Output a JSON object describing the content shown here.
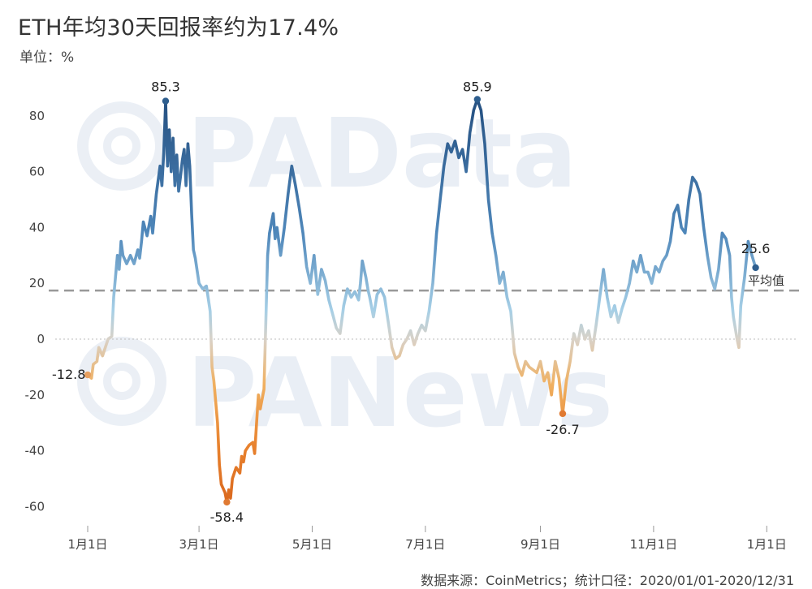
{
  "title": "ETH年均30天回报率约为17.4%",
  "unit": "单位：%",
  "source": "数据来源：CoinMetrics；统计口径：2020/01/01-2020/12/31",
  "watermarks": [
    "PAData",
    "PANews"
  ],
  "chart_data": {
    "type": "line",
    "xlabel": "",
    "ylabel": "",
    "ylim": [
      -65,
      90
    ],
    "yticks": [
      80,
      60,
      40,
      20,
      0,
      -20,
      -40,
      -60
    ],
    "xlim": [
      0,
      365
    ],
    "xticks": [
      {
        "day": 0,
        "label": "1月1日"
      },
      {
        "day": 60,
        "label": "3月1日"
      },
      {
        "day": 121,
        "label": "5月1日"
      },
      {
        "day": 182,
        "label": "7月1日"
      },
      {
        "day": 244,
        "label": "9月1日"
      },
      {
        "day": 305,
        "label": "11月1日"
      },
      {
        "day": 366,
        "label": "1月1日"
      }
    ],
    "average": {
      "value": 17.4,
      "label": "平均值"
    },
    "colors": {
      "high": "#2e5e8e",
      "mid": "#9ec9e2",
      "low": "#e8823c",
      "zero": "#d9d4cc"
    },
    "annotations": [
      {
        "day": 0,
        "value": -12.8,
        "label": "-12.8"
      },
      {
        "day": 42,
        "value": 85.3,
        "label": "85.3"
      },
      {
        "day": 75,
        "value": -58.4,
        "label": "-58.4"
      },
      {
        "day": 230,
        "value": 85.9,
        "label": "85.9"
      },
      {
        "day": 274,
        "value": -26.7,
        "label": "-26.7"
      },
      {
        "day": 365,
        "value": 25.6,
        "label": "25.6"
      }
    ],
    "series": [
      {
        "points": [
          [
            0,
            -12.8
          ],
          [
            2,
            -14
          ],
          [
            3,
            -9
          ],
          [
            5,
            -8
          ],
          [
            6,
            -3
          ],
          [
            8,
            -6
          ],
          [
            10,
            -2
          ],
          [
            11,
            0
          ],
          [
            13,
            1
          ],
          [
            14,
            15
          ],
          [
            16,
            30
          ],
          [
            17,
            25
          ],
          [
            18,
            35
          ],
          [
            19,
            30
          ],
          [
            21,
            27
          ],
          [
            23,
            30
          ],
          [
            25,
            27
          ],
          [
            27,
            32
          ],
          [
            28,
            29
          ],
          [
            29,
            35
          ],
          [
            30,
            42
          ],
          [
            32,
            37
          ],
          [
            34,
            44
          ],
          [
            35,
            38
          ],
          [
            37,
            52
          ],
          [
            39,
            62
          ],
          [
            40,
            55
          ],
          [
            41,
            67
          ],
          [
            42,
            85.3
          ],
          [
            43,
            62
          ],
          [
            44,
            75
          ],
          [
            45,
            60
          ],
          [
            46,
            72
          ],
          [
            47,
            55
          ],
          [
            48,
            66
          ],
          [
            49,
            53
          ],
          [
            50,
            58
          ],
          [
            51,
            64
          ],
          [
            52,
            68
          ],
          [
            53,
            55
          ],
          [
            54,
            70
          ],
          [
            55,
            62
          ],
          [
            56,
            45
          ],
          [
            57,
            32
          ],
          [
            58,
            29
          ],
          [
            60,
            20
          ],
          [
            62,
            18
          ],
          [
            64,
            19
          ],
          [
            66,
            10
          ],
          [
            67,
            -10
          ],
          [
            68,
            -15
          ],
          [
            70,
            -30
          ],
          [
            71,
            -45
          ],
          [
            72,
            -52
          ],
          [
            74,
            -55
          ],
          [
            75,
            -58.4
          ],
          [
            76,
            -54
          ],
          [
            77,
            -57
          ],
          [
            78,
            -50
          ],
          [
            80,
            -46
          ],
          [
            82,
            -48
          ],
          [
            83,
            -42
          ],
          [
            84,
            -44
          ],
          [
            85,
            -40
          ],
          [
            87,
            -38
          ],
          [
            89,
            -37
          ],
          [
            90,
            -41
          ],
          [
            92,
            -20
          ],
          [
            93,
            -25
          ],
          [
            95,
            -18
          ],
          [
            97,
            30
          ],
          [
            98,
            38
          ],
          [
            100,
            45
          ],
          [
            101,
            36
          ],
          [
            102,
            40
          ],
          [
            104,
            30
          ],
          [
            106,
            40
          ],
          [
            108,
            52
          ],
          [
            110,
            62
          ],
          [
            112,
            55
          ],
          [
            114,
            47
          ],
          [
            116,
            38
          ],
          [
            118,
            26
          ],
          [
            120,
            20
          ],
          [
            122,
            30
          ],
          [
            124,
            16
          ],
          [
            126,
            25
          ],
          [
            128,
            21
          ],
          [
            130,
            14
          ],
          [
            132,
            9
          ],
          [
            134,
            4
          ],
          [
            136,
            2
          ],
          [
            138,
            12
          ],
          [
            140,
            18
          ],
          [
            142,
            15
          ],
          [
            144,
            17
          ],
          [
            146,
            14
          ],
          [
            147,
            20
          ],
          [
            148,
            28
          ],
          [
            150,
            22
          ],
          [
            151,
            18
          ],
          [
            152,
            15
          ],
          [
            154,
            8
          ],
          [
            156,
            16
          ],
          [
            158,
            18
          ],
          [
            160,
            15
          ],
          [
            162,
            6
          ],
          [
            164,
            -3
          ],
          [
            166,
            -7
          ],
          [
            168,
            -6
          ],
          [
            170,
            -2
          ],
          [
            172,
            0
          ],
          [
            174,
            3
          ],
          [
            176,
            -2
          ],
          [
            178,
            2
          ],
          [
            180,
            5
          ],
          [
            182,
            3
          ],
          [
            184,
            10
          ],
          [
            186,
            20
          ],
          [
            188,
            38
          ],
          [
            190,
            50
          ],
          [
            192,
            62
          ],
          [
            194,
            70
          ],
          [
            196,
            67
          ],
          [
            198,
            71
          ],
          [
            200,
            65
          ],
          [
            202,
            68
          ],
          [
            204,
            60
          ],
          [
            206,
            74
          ],
          [
            208,
            82
          ],
          [
            210,
            85.9
          ],
          [
            212,
            82
          ],
          [
            214,
            70
          ],
          [
            216,
            50
          ],
          [
            218,
            38
          ],
          [
            220,
            30
          ],
          [
            222,
            20
          ],
          [
            224,
            24
          ],
          [
            226,
            15
          ],
          [
            228,
            10
          ],
          [
            230,
            -5
          ],
          [
            232,
            -10
          ],
          [
            234,
            -13
          ],
          [
            236,
            -8
          ],
          [
            238,
            -10
          ],
          [
            240,
            -11
          ],
          [
            242,
            -12
          ],
          [
            244,
            -8
          ],
          [
            246,
            -15
          ],
          [
            248,
            -12
          ],
          [
            250,
            -20
          ],
          [
            252,
            -8
          ],
          [
            254,
            -14
          ],
          [
            256,
            -26.7
          ],
          [
            258,
            -15
          ],
          [
            260,
            -8
          ],
          [
            262,
            2
          ],
          [
            264,
            -2
          ],
          [
            266,
            5
          ],
          [
            268,
            0
          ],
          [
            270,
            3
          ],
          [
            272,
            -4
          ],
          [
            274,
            5
          ],
          [
            276,
            15
          ],
          [
            278,
            25
          ],
          [
            280,
            15
          ],
          [
            282,
            8
          ],
          [
            284,
            12
          ],
          [
            286,
            6
          ],
          [
            288,
            11
          ],
          [
            290,
            15
          ],
          [
            292,
            20
          ],
          [
            294,
            28
          ],
          [
            296,
            24
          ],
          [
            298,
            30
          ],
          [
            300,
            24
          ],
          [
            302,
            24
          ],
          [
            304,
            20
          ],
          [
            306,
            26
          ],
          [
            308,
            24
          ],
          [
            310,
            28
          ],
          [
            312,
            30
          ],
          [
            314,
            35
          ],
          [
            316,
            45
          ],
          [
            318,
            48
          ],
          [
            320,
            40
          ],
          [
            322,
            38
          ],
          [
            324,
            50
          ],
          [
            326,
            58
          ],
          [
            328,
            56
          ],
          [
            330,
            52
          ],
          [
            332,
            40
          ],
          [
            334,
            30
          ],
          [
            336,
            22
          ],
          [
            338,
            18
          ],
          [
            340,
            25
          ],
          [
            342,
            38
          ],
          [
            344,
            36
          ],
          [
            346,
            30
          ],
          [
            347,
            15
          ],
          [
            348,
            8
          ],
          [
            350,
            0
          ],
          [
            351,
            -3
          ],
          [
            352,
            12
          ],
          [
            354,
            22
          ],
          [
            356,
            35
          ],
          [
            358,
            30
          ],
          [
            360,
            25.6
          ]
        ]
      }
    ]
  }
}
